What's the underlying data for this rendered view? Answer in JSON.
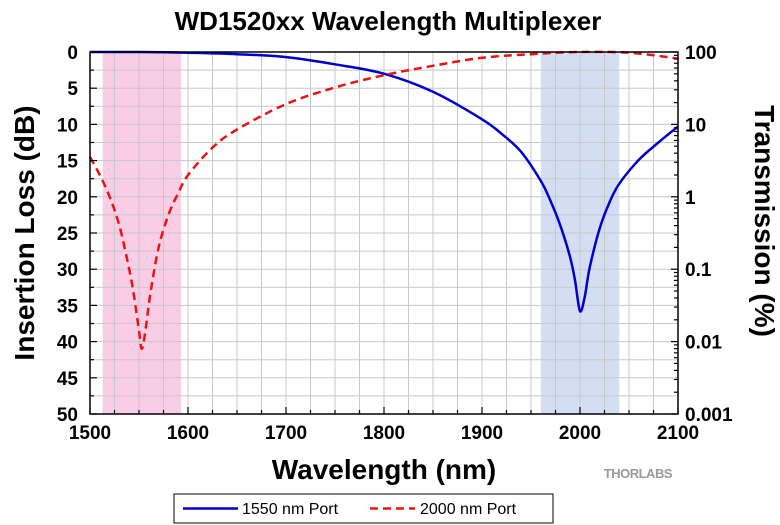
{
  "chart_data": {
    "type": "line",
    "title": "WD1520xx Wavelength Multiplexer",
    "xlabel": "Wavelength (nm)",
    "ylabel_left": "Insertion Loss (dB)",
    "ylabel_right": "Transmission (%)",
    "xlim": [
      1500,
      2100
    ],
    "ylim_left": [
      0,
      50
    ],
    "ylim_right": [
      0.001,
      100
    ],
    "y_left_inverted": true,
    "y_right_scale": "log",
    "x_ticks": [
      "1500",
      "1600",
      "1700",
      "1800",
      "1900",
      "2000",
      "2100"
    ],
    "y_left_ticks": [
      "0",
      "5",
      "10",
      "15",
      "20",
      "25",
      "30",
      "35",
      "40",
      "45",
      "50"
    ],
    "y_right_ticks": [
      "100",
      "10",
      "1",
      "0.1",
      "0.01",
      "0.001"
    ],
    "grid": true,
    "legend_position": "bottom",
    "shaded_bands": [
      {
        "x": [
          1513,
          1593
        ],
        "color": "#f9cde6"
      },
      {
        "x": [
          1960,
          2040
        ],
        "color": "#d4def2"
      }
    ],
    "series": [
      {
        "name": "1550 nm Port",
        "color": "#0000cc",
        "dash": "solid",
        "x": [
          1500,
          1550,
          1600,
          1650,
          1700,
          1750,
          1800,
          1850,
          1900,
          1920,
          1940,
          1960,
          1970,
          1980,
          1990,
          1995,
          2000,
          2005,
          2010,
          2020,
          2030,
          2040,
          2060,
          2080,
          2100
        ],
        "y": [
          0,
          0,
          0.1,
          0.3,
          0.7,
          1.7,
          3.0,
          5.5,
          9.3,
          11.3,
          13.8,
          17.8,
          20.6,
          24.0,
          28.4,
          31.6,
          35.8,
          33.7,
          29.7,
          24.4,
          20.8,
          18.2,
          14.9,
          12.5,
          10.3
        ]
      },
      {
        "name": "2000 nm Port",
        "color": "#ee1111",
        "dash": "dashed",
        "x": [
          1500,
          1510,
          1520,
          1530,
          1540,
          1545,
          1550,
          1553,
          1557,
          1562,
          1570,
          1580,
          1590,
          1600,
          1625,
          1650,
          1700,
          1750,
          1800,
          1850,
          1900,
          1950,
          2000,
          2050,
          2100
        ],
        "y": [
          14.5,
          17.0,
          20.0,
          24.0,
          30.0,
          33.8,
          38.5,
          41.0,
          38.0,
          33.0,
          27.0,
          22.5,
          19.5,
          17.0,
          13.2,
          10.7,
          7.2,
          4.9,
          3.2,
          1.9,
          0.8,
          0.3,
          0.0,
          0.1,
          0.9
        ]
      }
    ],
    "watermark": "THORLABS"
  }
}
